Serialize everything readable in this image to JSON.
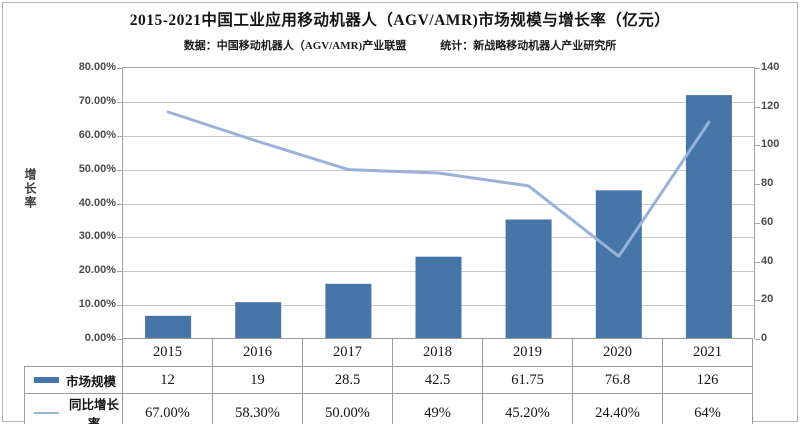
{
  "header": {
    "title": "2015-2021中国工业应用移动机器人（AGV/AMR)市场规模与增长率（亿元）",
    "source": "数据：中国移动机器人（AGV/AMR)产业联盟",
    "stat": "统计：新战略移动机器人产业研究所"
  },
  "chart_data": {
    "type": "bar",
    "subtype": "combo-bar-line",
    "categories": [
      "2015",
      "2016",
      "2017",
      "2018",
      "2019",
      "2020",
      "2021"
    ],
    "series": [
      {
        "name": "市场规模",
        "type": "bar",
        "axis": "right",
        "values": [
          12,
          19,
          28.5,
          42.5,
          61.75,
          76.8,
          126
        ],
        "display": [
          "12",
          "19",
          "28.5",
          "42.5",
          "61.75",
          "76.8",
          "126"
        ],
        "color": "#4675A8"
      },
      {
        "name": "同比增长率",
        "type": "line",
        "axis": "left",
        "values": [
          67,
          58.3,
          50,
          49,
          45.2,
          24.4,
          64
        ],
        "display": [
          "67.00%",
          "58.30%",
          "50.00%",
          "49%",
          "45.20%",
          "24.40%",
          "64%"
        ],
        "color": "#98B2D9"
      }
    ],
    "left_axis": {
      "label": "增长率",
      "min": 0,
      "max": 80,
      "step": 10,
      "ticks": [
        "80.00%",
        "70.00%",
        "60.00%",
        "50.00%",
        "40.00%",
        "30.00%",
        "20.00%",
        "10.00%",
        "0.00%"
      ]
    },
    "right_axis": {
      "min": 0,
      "max": 140,
      "step": 20,
      "ticks": [
        "140",
        "120",
        "100",
        "80",
        "60",
        "40",
        "20",
        "0"
      ]
    },
    "grid": "horizontal",
    "legend_position": "data-table-left",
    "data_table_shown": true
  },
  "colors": {
    "bar": "#4675A8",
    "line": "#98B2D9",
    "gridline": "#c9c9c9",
    "axis_border": "#a6a6a6",
    "table_border": "#9b9b9b",
    "frame_border": "#b5b5b5",
    "axis_text": "#4a4a4a",
    "text": "#141414"
  }
}
